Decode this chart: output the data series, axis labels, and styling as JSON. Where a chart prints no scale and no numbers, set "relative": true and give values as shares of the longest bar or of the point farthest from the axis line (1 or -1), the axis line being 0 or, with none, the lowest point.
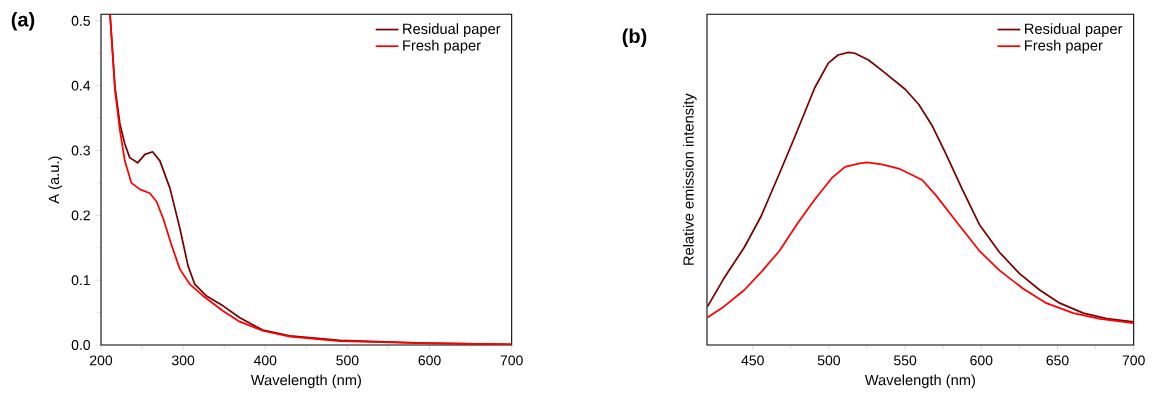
{
  "chart_data": [
    {
      "type": "line",
      "title": "(a)",
      "xlabel": "Wavelength (nm)",
      "ylabel": "A (a.u.)",
      "xlim": [
        200,
        700
      ],
      "ylim": [
        0,
        0.51
      ],
      "xticks": [
        200,
        300,
        400,
        500,
        600,
        700
      ],
      "yticks": [
        {
          "value": 0,
          "label": "0.0"
        },
        0.1,
        0.2,
        0.3,
        0.4,
        0.5
      ],
      "legend": "top right",
      "series": [
        {
          "name": "Residual paper",
          "color": "#7b0000",
          "x": [
            211,
            217,
            223,
            229,
            235,
            244.6,
            253.5,
            262.8,
            271.7,
            283.9,
            296,
            306,
            314,
            328,
            349,
            369,
            397,
            430,
            490.5,
            592,
            700
          ],
          "values": [
            0.51,
            0.398,
            0.341,
            0.31,
            0.289,
            0.281,
            0.294,
            0.298,
            0.284,
            0.242,
            0.18,
            0.122,
            0.094,
            0.076,
            0.06,
            0.042,
            0.023,
            0.014,
            0.007,
            0.003,
            0.001
          ]
        },
        {
          "name": "Fresh paper",
          "color": "#ff0000",
          "x": [
            211,
            217,
            223,
            229,
            237,
            247.4,
            259.6,
            267.7,
            275.8,
            285.9,
            296,
            308,
            324,
            349,
            369,
            397,
            430,
            490.5,
            592,
            700
          ],
          "values": [
            0.51,
            0.393,
            0.331,
            0.284,
            0.25,
            0.24,
            0.234,
            0.221,
            0.195,
            0.154,
            0.117,
            0.094,
            0.076,
            0.052,
            0.036,
            0.022,
            0.013,
            0.006,
            0.003,
            0.001
          ]
        }
      ]
    },
    {
      "type": "line",
      "title": "(b)",
      "xlabel": "Wavelength (nm)",
      "ylabel": "Relative emission intensity",
      "relative": true,
      "xlim": [
        420,
        700
      ],
      "xticks": [
        450,
        500,
        550,
        600,
        650,
        700
      ],
      "legend": "top right",
      "series": [
        {
          "name": "Residual paper",
          "color": "#7b0000",
          "x": [
            420.3,
            431,
            444.5,
            455.5,
            467.6,
            477.5,
            490.7,
            499.6,
            506,
            512.8,
            517,
            526,
            537,
            550.2,
            559,
            567.8,
            576.7,
            587.7,
            598.7,
            611.9,
            625.1,
            638.3,
            651.5,
            667,
            682.4,
            700
          ],
          "values": [
            0.131,
            0.227,
            0.334,
            0.44,
            0.587,
            0.71,
            0.879,
            0.963,
            0.991,
            1.0,
            0.997,
            0.974,
            0.929,
            0.873,
            0.822,
            0.749,
            0.654,
            0.53,
            0.412,
            0.317,
            0.244,
            0.188,
            0.143,
            0.109,
            0.09,
            0.079
          ]
        },
        {
          "name": "Fresh paper",
          "color": "#ff0000",
          "x": [
            420.3,
            431,
            444.5,
            455.5,
            467.6,
            479.7,
            490.7,
            501.8,
            510.6,
            519.4,
            524.9,
            534.8,
            545.8,
            554.6,
            561.2,
            570,
            583.3,
            598.7,
            611.9,
            627.3,
            642.7,
            660.4,
            678,
            700
          ],
          "values": [
            0.094,
            0.131,
            0.188,
            0.249,
            0.322,
            0.418,
            0.497,
            0.57,
            0.609,
            0.62,
            0.624,
            0.617,
            0.603,
            0.581,
            0.564,
            0.513,
            0.424,
            0.322,
            0.255,
            0.193,
            0.143,
            0.109,
            0.089,
            0.075
          ]
        }
      ]
    }
  ]
}
